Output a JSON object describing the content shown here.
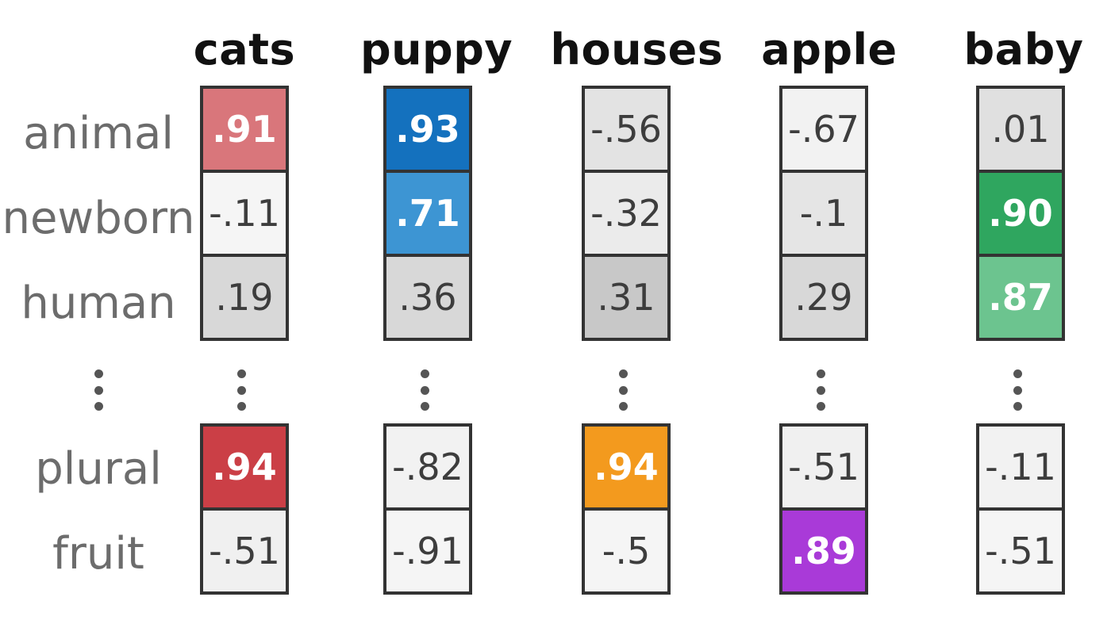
{
  "row_labels": [
    "animal",
    "newborn",
    "human",
    "plural",
    "fruit"
  ],
  "ellipsis_after_row": 2,
  "columns": [
    {
      "header": "cats",
      "cells": [
        {
          "text": ".91",
          "bg": "#d9767b",
          "highlight": true
        },
        {
          "text": "-.11",
          "bg": "#f5f5f5",
          "highlight": false
        },
        {
          "text": ".19",
          "bg": "#d8d8d8",
          "highlight": false
        },
        {
          "text": ".94",
          "bg": "#cb3f46",
          "highlight": true
        },
        {
          "text": "-.51",
          "bg": "#f0f0f0",
          "highlight": false
        }
      ]
    },
    {
      "header": "puppy",
      "cells": [
        {
          "text": ".93",
          "bg": "#1471be",
          "highlight": true
        },
        {
          "text": ".71",
          "bg": "#3d95d3",
          "highlight": true
        },
        {
          "text": ".36",
          "bg": "#d8d8d8",
          "highlight": false
        },
        {
          "text": "-.82",
          "bg": "#f2f2f2",
          "highlight": false
        },
        {
          "text": "-.91",
          "bg": "#f5f5f5",
          "highlight": false
        }
      ]
    },
    {
      "header": "houses",
      "cells": [
        {
          "text": "-.56",
          "bg": "#e3e3e3",
          "highlight": false
        },
        {
          "text": "-.32",
          "bg": "#ebebeb",
          "highlight": false
        },
        {
          "text": ".31",
          "bg": "#c8c8c8",
          "highlight": false
        },
        {
          "text": ".94",
          "bg": "#f39a1e",
          "highlight": true
        },
        {
          "text": "-.5",
          "bg": "#f5f5f5",
          "highlight": false
        }
      ]
    },
    {
      "header": "apple",
      "cells": [
        {
          "text": "-.67",
          "bg": "#f2f2f2",
          "highlight": false
        },
        {
          "text": "-.1",
          "bg": "#e5e5e5",
          "highlight": false
        },
        {
          "text": ".29",
          "bg": "#d8d8d8",
          "highlight": false
        },
        {
          "text": "-.51",
          "bg": "#f0f0f0",
          "highlight": false
        },
        {
          "text": ".89",
          "bg": "#a93ad8",
          "highlight": true
        }
      ]
    },
    {
      "header": "baby",
      "cells": [
        {
          "text": ".01",
          "bg": "#e0e0e0",
          "highlight": false
        },
        {
          "text": ".90",
          "bg": "#2fa65f",
          "highlight": true
        },
        {
          "text": ".87",
          "bg": "#6cc48f",
          "highlight": true
        },
        {
          "text": "-.11",
          "bg": "#f2f2f2",
          "highlight": false
        },
        {
          "text": "-.51",
          "bg": "#f5f5f5",
          "highlight": false
        }
      ]
    }
  ]
}
